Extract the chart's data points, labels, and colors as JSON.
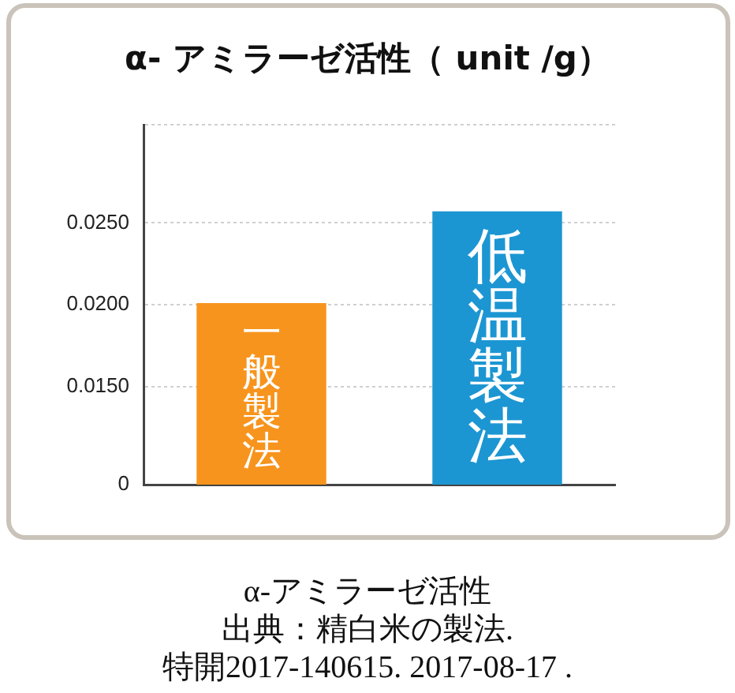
{
  "chart_data": {
    "type": "bar",
    "title": "α- アミラーゼ活性（ unit /g）",
    "categories": [
      "一般製法",
      "低温製法"
    ],
    "values": [
      0.0201,
      0.0257
    ],
    "colors": [
      "#f7941d",
      "#1c96d2"
    ],
    "ylim": [
      0.009,
      0.031
    ],
    "yticks": [
      {
        "value": 0.009,
        "label": "0"
      },
      {
        "value": 0.015,
        "label": "0.0150"
      },
      {
        "value": 0.02,
        "label": "0.0200"
      },
      {
        "value": 0.025,
        "label": "0.0250"
      },
      {
        "value": 0.031,
        "label": null
      }
    ],
    "grid": "y",
    "legend": false,
    "annotations": [
      "α-アミラーゼ活性",
      "出典：精白米の製法.",
      "特開2017-140615. 2017-08-17 ."
    ]
  }
}
